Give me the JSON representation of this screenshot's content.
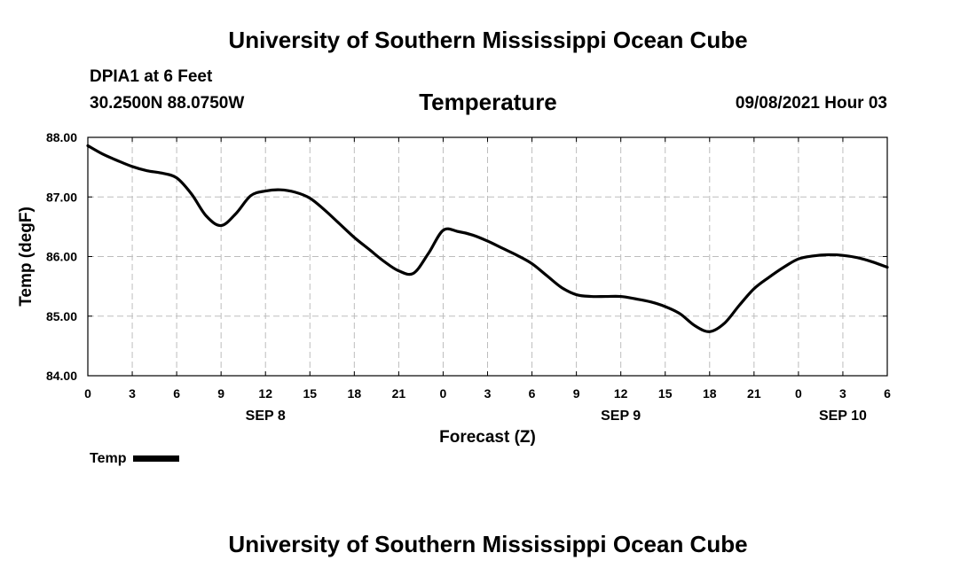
{
  "header": {
    "title_top": "University of Southern Mississippi Ocean Cube",
    "station": "DPIA1 at 6 Feet",
    "coords": "30.2500N  88.0750W",
    "variable": "Temperature",
    "datetime": "09/08/2021 Hour 03",
    "title_bottom": "University of Southern Mississippi Ocean Cube"
  },
  "legend": {
    "label": "Temp"
  },
  "chart_data": {
    "type": "line",
    "title": "Temperature",
    "xlabel": "Forecast (Z)",
    "ylabel": "Temp (degF)",
    "xlim": [
      0,
      54
    ],
    "ylim": [
      84.0,
      88.0
    ],
    "grid": true,
    "x_ticks": [
      {
        "x": 0,
        "label": "0"
      },
      {
        "x": 3,
        "label": "3"
      },
      {
        "x": 6,
        "label": "6"
      },
      {
        "x": 9,
        "label": "9"
      },
      {
        "x": 12,
        "label": "12"
      },
      {
        "x": 15,
        "label": "15"
      },
      {
        "x": 18,
        "label": "18"
      },
      {
        "x": 21,
        "label": "21"
      },
      {
        "x": 24,
        "label": "0"
      },
      {
        "x": 27,
        "label": "3"
      },
      {
        "x": 30,
        "label": "6"
      },
      {
        "x": 33,
        "label": "9"
      },
      {
        "x": 36,
        "label": "12"
      },
      {
        "x": 39,
        "label": "15"
      },
      {
        "x": 42,
        "label": "18"
      },
      {
        "x": 45,
        "label": "21"
      },
      {
        "x": 48,
        "label": "0"
      },
      {
        "x": 51,
        "label": "3"
      },
      {
        "x": 54,
        "label": "6"
      }
    ],
    "day_labels": [
      {
        "x": 12,
        "label": "SEP 8"
      },
      {
        "x": 36,
        "label": "SEP 9"
      },
      {
        "x": 51,
        "label": "SEP 10"
      }
    ],
    "y_ticks": [
      {
        "y": 84.0,
        "label": "84.00"
      },
      {
        "y": 85.0,
        "label": "85.00"
      },
      {
        "y": 86.0,
        "label": "86.00"
      },
      {
        "y": 87.0,
        "label": "87.00"
      },
      {
        "y": 88.0,
        "label": "88.00"
      }
    ],
    "series": [
      {
        "name": "Temp",
        "color": "#000000",
        "points": [
          [
            0,
            87.86
          ],
          [
            1,
            87.72
          ],
          [
            2,
            87.61
          ],
          [
            3,
            87.51
          ],
          [
            4,
            87.44
          ],
          [
            5,
            87.4
          ],
          [
            6,
            87.32
          ],
          [
            7,
            87.05
          ],
          [
            8,
            86.68
          ],
          [
            9,
            86.52
          ],
          [
            10,
            86.72
          ],
          [
            11,
            87.02
          ],
          [
            12,
            87.1
          ],
          [
            13,
            87.12
          ],
          [
            14,
            87.08
          ],
          [
            15,
            86.98
          ],
          [
            16,
            86.78
          ],
          [
            17,
            86.55
          ],
          [
            18,
            86.32
          ],
          [
            19,
            86.12
          ],
          [
            20,
            85.92
          ],
          [
            21,
            85.76
          ],
          [
            22,
            85.72
          ],
          [
            23,
            86.05
          ],
          [
            24,
            86.44
          ],
          [
            25,
            86.42
          ],
          [
            26,
            86.36
          ],
          [
            27,
            86.26
          ],
          [
            28,
            86.14
          ],
          [
            29,
            86.02
          ],
          [
            30,
            85.88
          ],
          [
            31,
            85.68
          ],
          [
            32,
            85.48
          ],
          [
            33,
            85.36
          ],
          [
            34,
            85.33
          ],
          [
            35,
            85.33
          ],
          [
            36,
            85.33
          ],
          [
            37,
            85.29
          ],
          [
            38,
            85.24
          ],
          [
            39,
            85.16
          ],
          [
            40,
            85.04
          ],
          [
            41,
            84.84
          ],
          [
            42,
            84.74
          ],
          [
            43,
            84.88
          ],
          [
            44,
            85.18
          ],
          [
            45,
            85.46
          ],
          [
            46,
            85.65
          ],
          [
            47,
            85.82
          ],
          [
            48,
            85.96
          ],
          [
            49,
            86.01
          ],
          [
            50,
            86.03
          ],
          [
            51,
            86.02
          ],
          [
            52,
            85.98
          ],
          [
            53,
            85.91
          ],
          [
            54,
            85.82
          ]
        ]
      }
    ]
  }
}
